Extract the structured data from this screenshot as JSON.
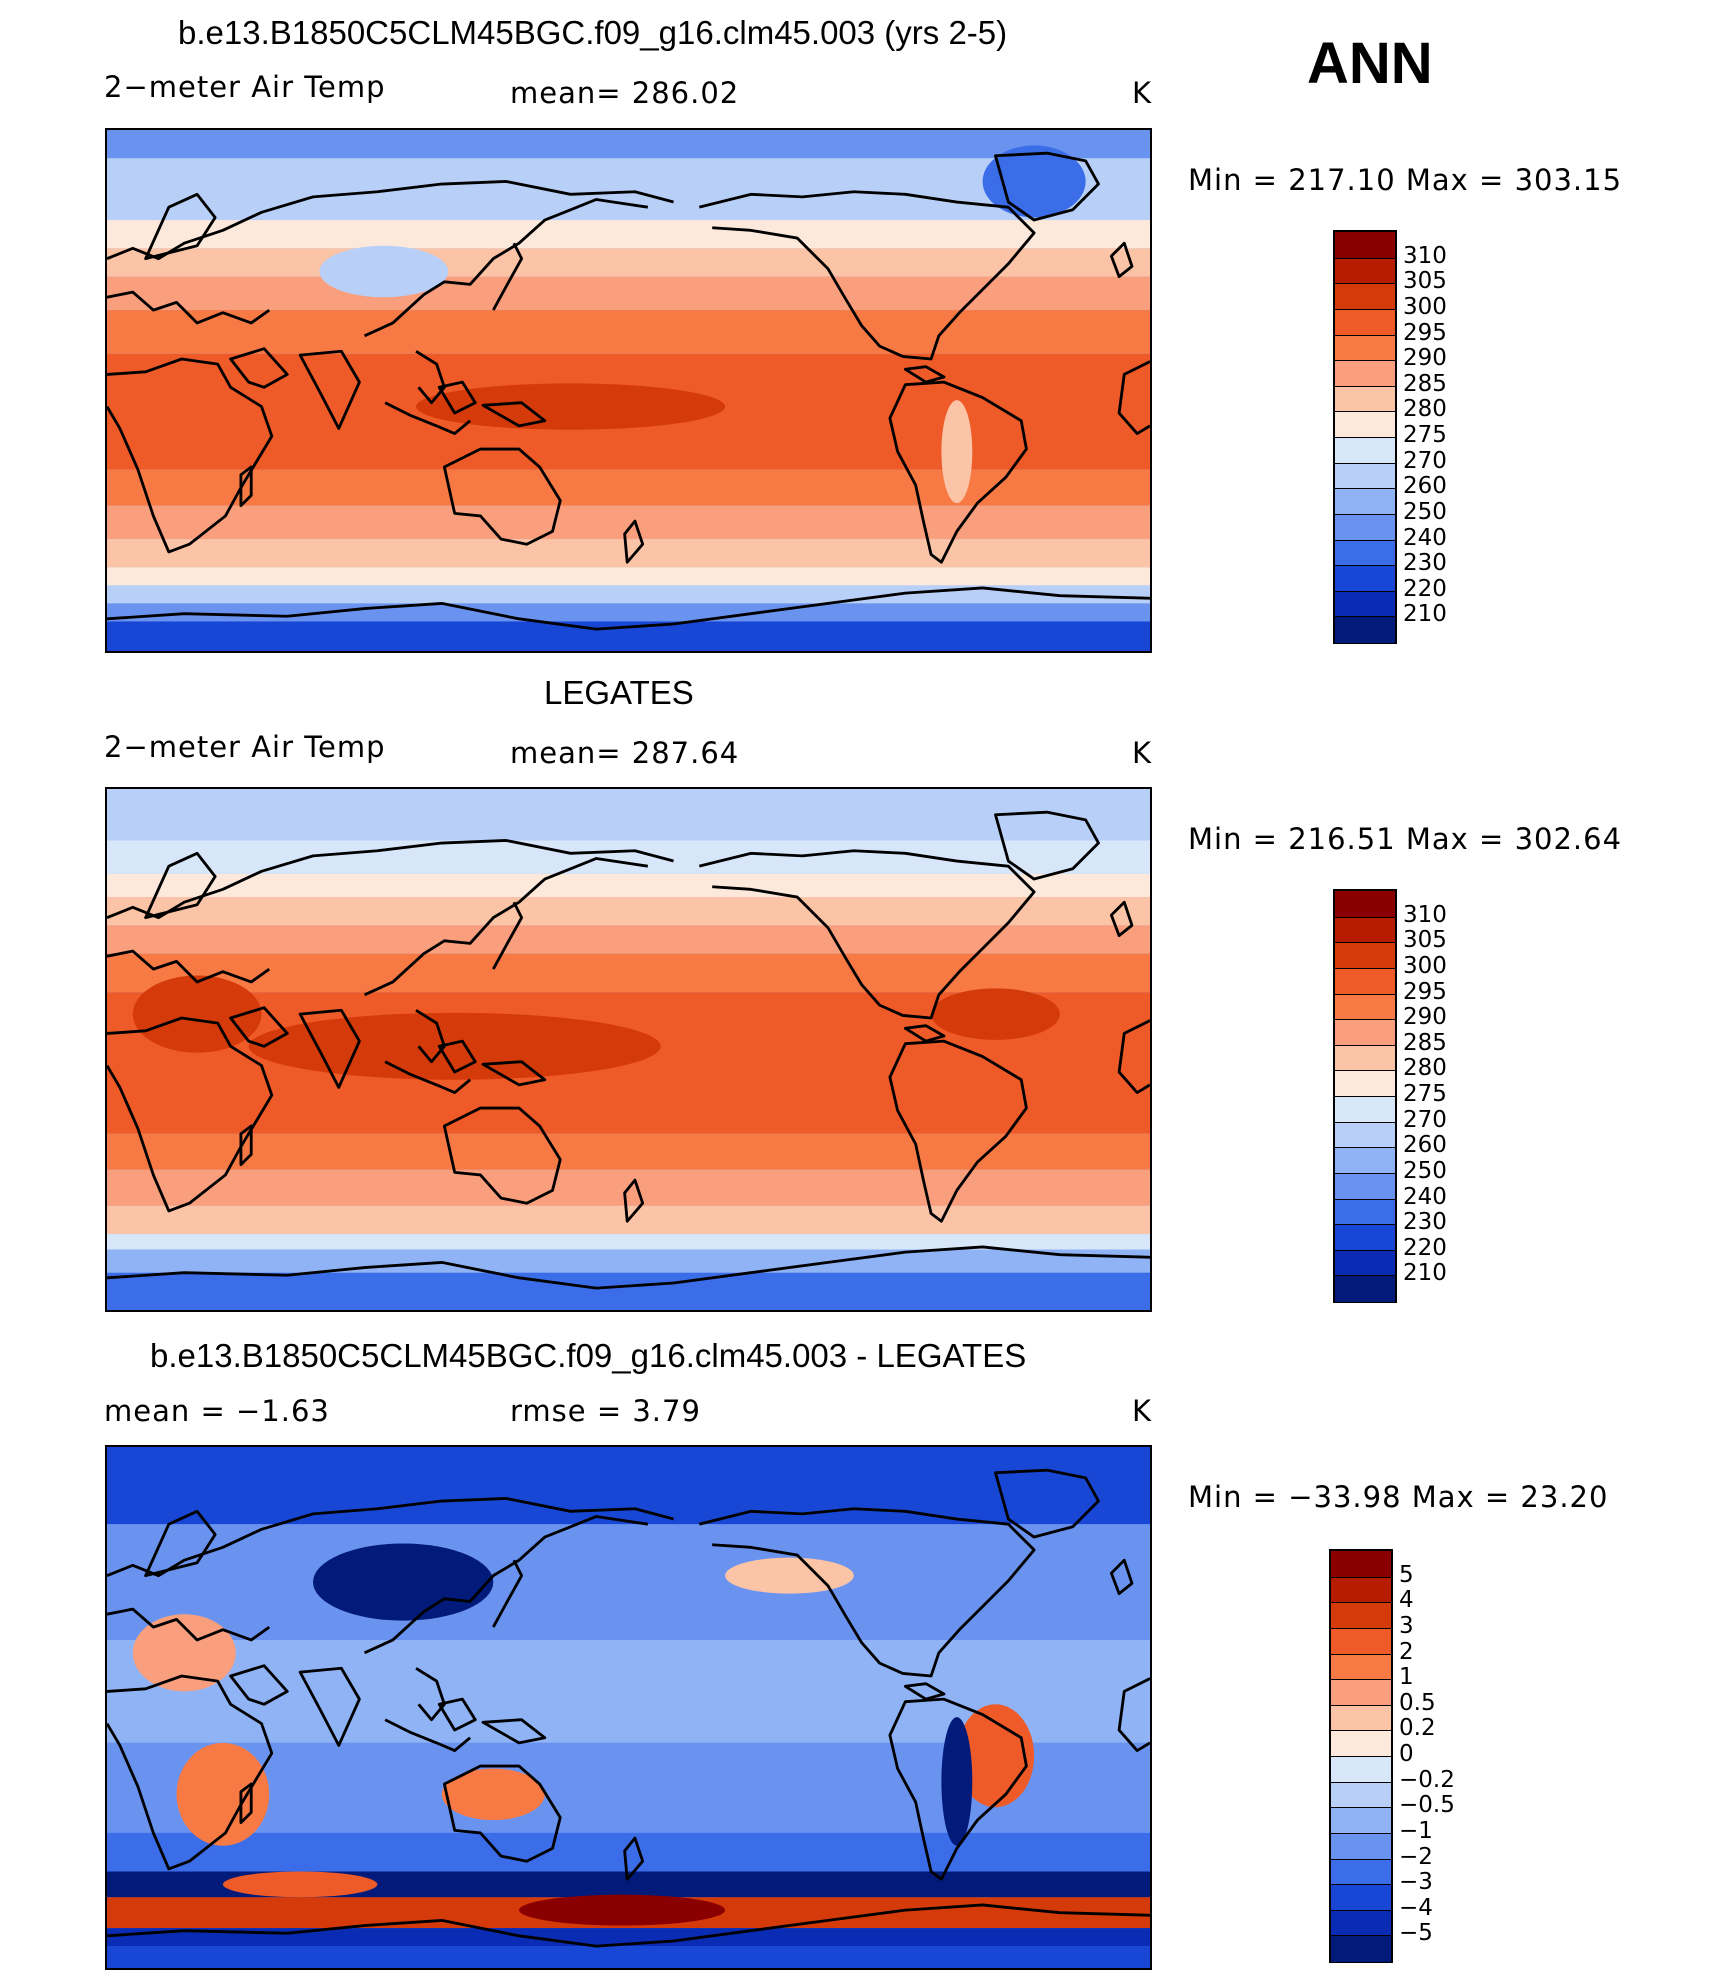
{
  "season": "ANN",
  "panels": [
    {
      "title": "b.e13.B1850C5CLM45BGC.f09_g16.clm45.003 (yrs 2-5)",
      "left_label": "2−meter Air Temp",
      "center_label": "mean=  286.02",
      "units": "K",
      "minmax": "Min  =  217.10  Max  =  303.15",
      "map": "model-temperature"
    },
    {
      "title": "LEGATES",
      "left_label": "2−meter Air Temp",
      "center_label": "mean=  287.64",
      "units": "K",
      "minmax": "Min  =  216.51  Max  =  302.64",
      "map": "observed-temperature"
    },
    {
      "title": "b.e13.B1850C5CLM45BGC.f09_g16.clm45.003 - LEGATES",
      "left_label": "mean  =    −1.63",
      "center_label": "rmse  =     3.79",
      "units": "K",
      "minmax": "Min  =  −33.98  Max  =    23.20",
      "map": "difference"
    }
  ],
  "colorbars": {
    "temperature": {
      "labels": [
        "310",
        "305",
        "300",
        "295",
        "290",
        "285",
        "280",
        "275",
        "270",
        "260",
        "250",
        "240",
        "230",
        "220",
        "210"
      ],
      "colors": [
        "#8a0000",
        "#b81c00",
        "#d53a0a",
        "#ee5a28",
        "#f77a45",
        "#fa9f7e",
        "#fcc4a6",
        "#fde8dc",
        "#d8e6fa",
        "#b8d0f8",
        "#8fb3f5",
        "#6a93f0",
        "#3c6de8",
        "#1847d6",
        "#0a2bb4",
        "#021a7a"
      ]
    },
    "difference": {
      "labels": [
        "5",
        "4",
        "3",
        "2",
        "1",
        "0.5",
        "0.2",
        "0",
        "−0.2",
        "−0.5",
        "−1",
        "−2",
        "−3",
        "−4",
        "−5"
      ],
      "colors": [
        "#8a0000",
        "#b81c00",
        "#d53a0a",
        "#ee5a28",
        "#f77a45",
        "#fa9f7e",
        "#fcc4a6",
        "#fde8dc",
        "#d8e6fa",
        "#b8d0f8",
        "#8fb3f5",
        "#6a93f0",
        "#3c6de8",
        "#1847d6",
        "#0a2bb4",
        "#021a7a"
      ]
    }
  }
}
